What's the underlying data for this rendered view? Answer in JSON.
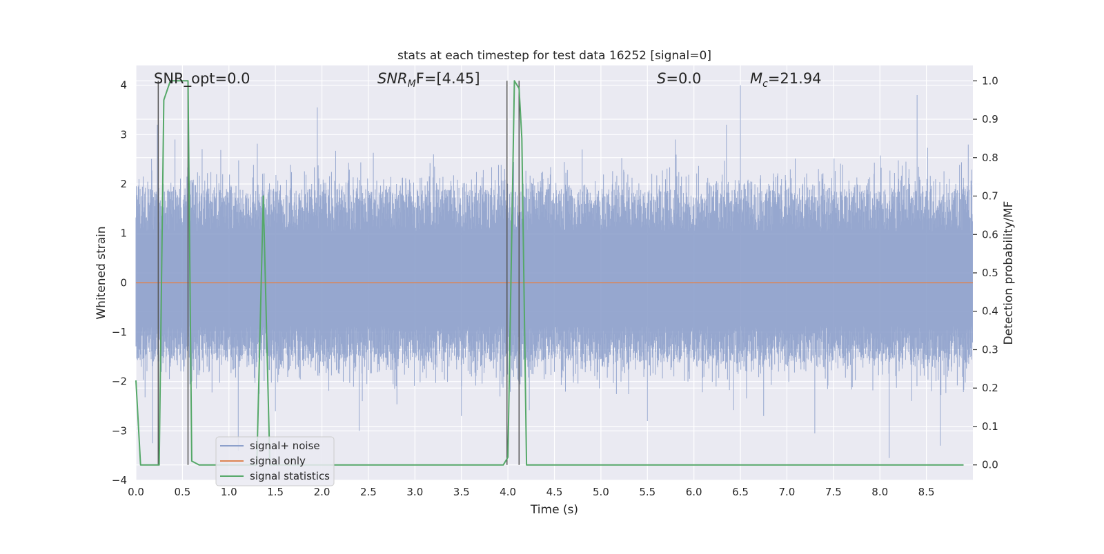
{
  "chart_data": {
    "type": "line",
    "title": "stats at each timestep for test data 16252 [signal=0]",
    "xlabel": "Time (s)",
    "ylabel": "Whitened strain",
    "ylabel_right": "Detection probability/MF",
    "xlim": [
      0,
      9.0
    ],
    "ylim": [
      -4.0,
      4.4
    ],
    "ylim_right": [
      -0.04,
      1.04
    ],
    "x_ticks": [
      "0.0",
      "0.5",
      "1.0",
      "1.5",
      "2.0",
      "2.5",
      "3.0",
      "3.5",
      "4.0",
      "4.5",
      "5.0",
      "5.5",
      "6.0",
      "6.5",
      "7.0",
      "7.5",
      "8.0",
      "8.5"
    ],
    "y_ticks": [
      "−4",
      "−3",
      "−2",
      "−1",
      "0",
      "1",
      "2",
      "3",
      "4"
    ],
    "y_ticks_right": [
      "0.0",
      "0.1",
      "0.2",
      "0.3",
      "0.4",
      "0.5",
      "0.6",
      "0.7",
      "0.8",
      "0.9",
      "1.0"
    ],
    "grid": true,
    "legend_position": "lower-left",
    "annotations": {
      "snr_opt": "SNR_opt=0.0",
      "snr_mf_symbol": "SNR",
      "snr_mf_sub": "M",
      "snr_mf_rest": "F=[4.45]",
      "s_symbol": "S",
      "s_rest": "=0.0",
      "mc_symbol": "M",
      "mc_sub": "c",
      "mc_rest": "=21.94"
    },
    "series": [
      {
        "name": "signal+ noise",
        "color": "#8da0cb",
        "kind": "noise",
        "typical_range": [
          -1.6,
          1.9
        ],
        "max_peak": 4.0,
        "min_peak": -3.6,
        "peaks": [
          [
            0.23,
            3.2
          ],
          [
            0.42,
            2.9
          ],
          [
            1.95,
            3.55
          ],
          [
            3.2,
            2.6
          ],
          [
            5.8,
            2.9
          ],
          [
            6.35,
            3.2
          ],
          [
            6.5,
            4.0
          ],
          [
            8.4,
            3.8
          ],
          [
            8.95,
            2.8
          ],
          [
            0.18,
            -3.25
          ],
          [
            1.1,
            -3.4
          ],
          [
            1.5,
            -2.6
          ],
          [
            2.4,
            -3.0
          ],
          [
            3.5,
            -2.7
          ],
          [
            6.75,
            -2.7
          ],
          [
            7.3,
            -3.05
          ],
          [
            8.1,
            -3.55
          ],
          [
            8.65,
            -3.3
          ],
          [
            5.5,
            -2.8
          ]
        ]
      },
      {
        "name": "signal only",
        "color": "#dd8452",
        "kind": "flat",
        "value": 0
      },
      {
        "name": "signal statistics",
        "color": "#55a868",
        "axis": "right",
        "x": [
          0.0,
          0.05,
          0.2,
          0.25,
          0.3,
          0.37,
          0.45,
          0.53,
          0.56,
          0.6,
          0.68,
          1.3,
          1.37,
          1.44,
          1.5,
          3.95,
          4.0,
          4.07,
          4.12,
          4.15,
          4.2,
          8.75,
          8.9
        ],
        "y": [
          0.22,
          0.0,
          0.0,
          0.0,
          0.95,
          1.0,
          1.0,
          1.0,
          1.0,
          0.01,
          0.0,
          0.0,
          0.7,
          0.0,
          0.0,
          0.0,
          0.02,
          1.0,
          0.98,
          0.85,
          0.0,
          0.0,
          0.0
        ]
      }
    ],
    "vertical_lines": [
      {
        "x": 0.24,
        "y0": 0.0,
        "y1": 1.0
      },
      {
        "x": 0.56,
        "y0": 0.0,
        "y1": 1.0
      },
      {
        "x": 3.99,
        "y0": 0.0,
        "y1": 1.0
      },
      {
        "x": 4.12,
        "y0": 0.0,
        "y1": 1.0
      }
    ]
  }
}
